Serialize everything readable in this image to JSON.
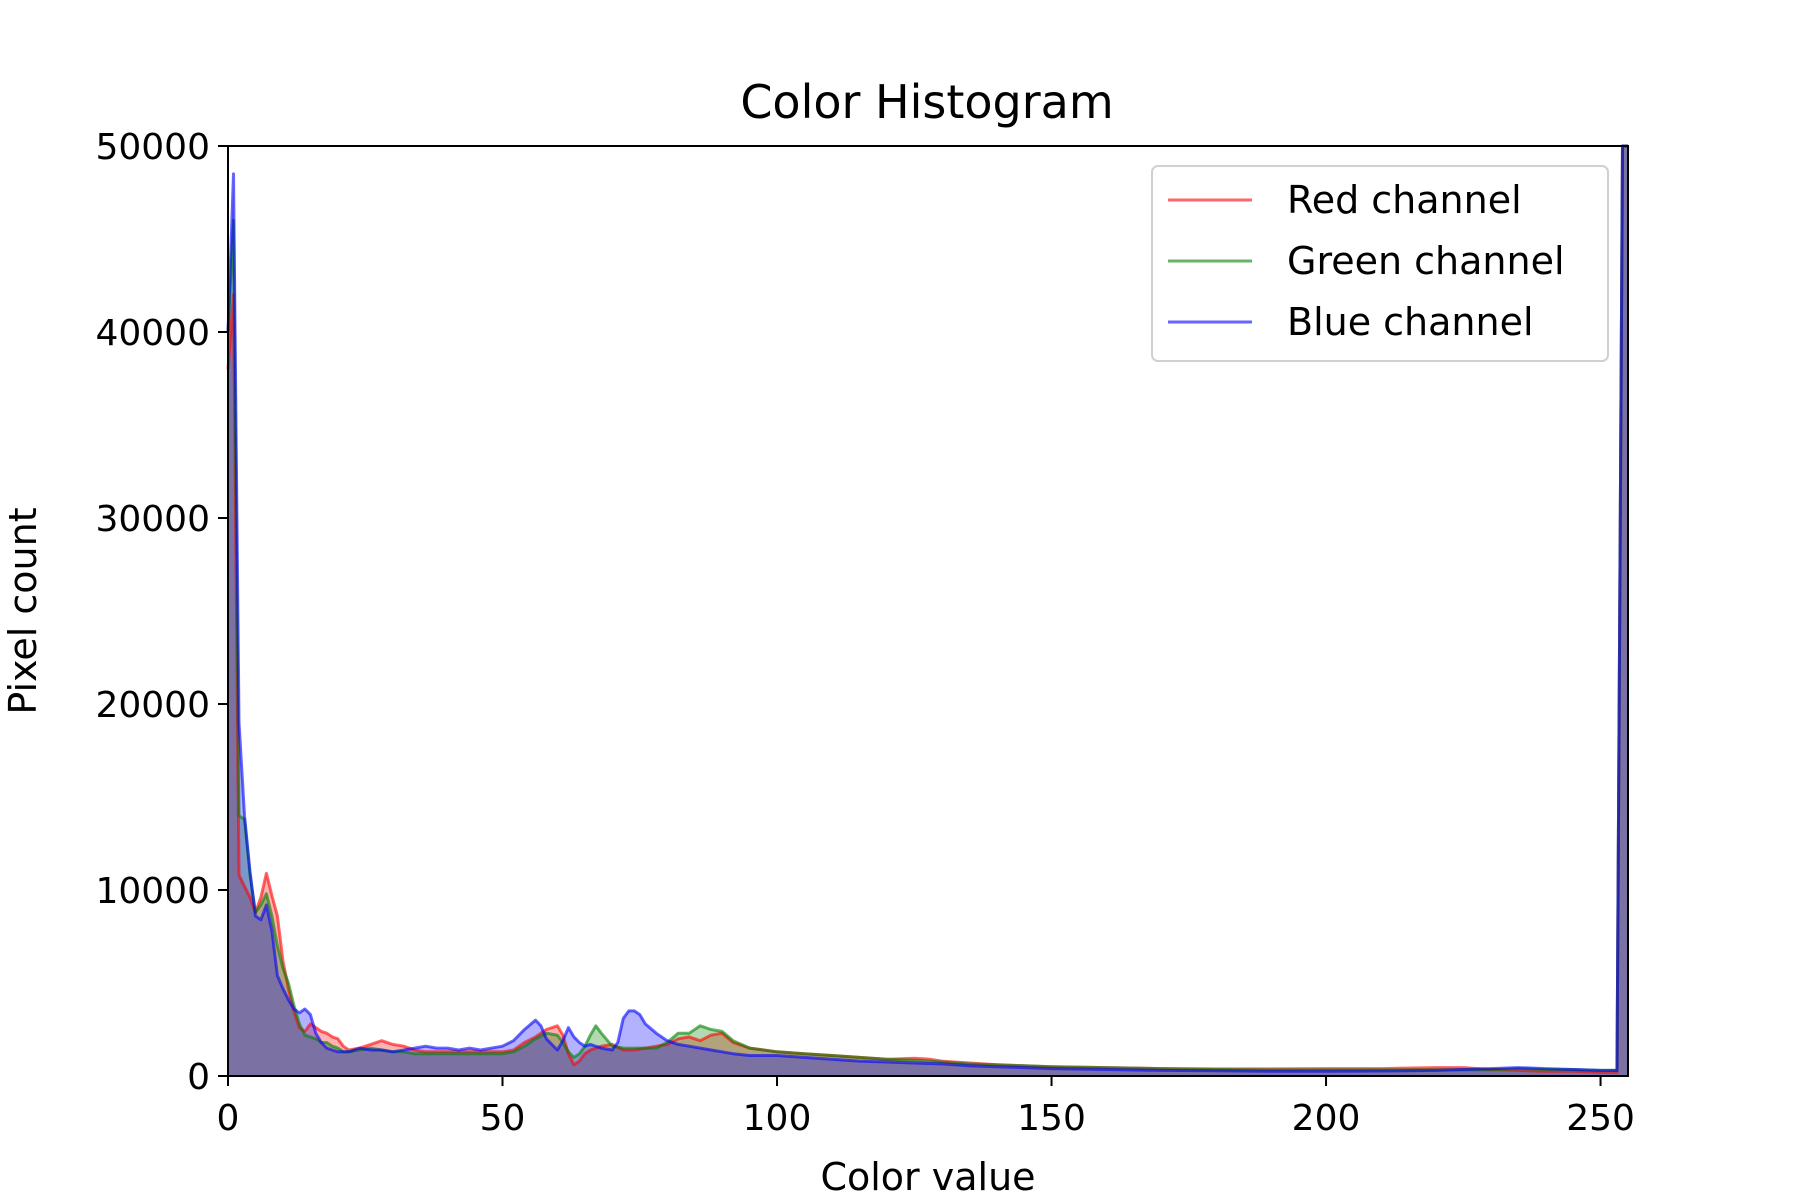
{
  "chart_data": {
    "type": "area",
    "title": "Color Histogram",
    "xlabel": "Color value",
    "ylabel": "Pixel count",
    "xlim": [
      0,
      255
    ],
    "ylim": [
      0,
      50000
    ],
    "xticks": [
      0,
      50,
      100,
      150,
      200,
      250
    ],
    "yticks": [
      0,
      10000,
      20000,
      30000,
      40000,
      50000
    ],
    "grid": false,
    "legend": {
      "placement": "top-right"
    },
    "series": [
      {
        "name": "Red channel",
        "color": "#ff0000",
        "points": [
          [
            0,
            38000
          ],
          [
            1,
            42000
          ],
          [
            2,
            10800
          ],
          [
            3,
            10200
          ],
          [
            4,
            9600
          ],
          [
            5,
            8800
          ],
          [
            6,
            9600
          ],
          [
            7,
            10900
          ],
          [
            8,
            9700
          ],
          [
            9,
            8600
          ],
          [
            10,
            6200
          ],
          [
            11,
            4700
          ],
          [
            12,
            3500
          ],
          [
            13,
            2600
          ],
          [
            14,
            2400
          ],
          [
            15,
            2800
          ],
          [
            16,
            2600
          ],
          [
            17,
            2400
          ],
          [
            18,
            2300
          ],
          [
            19,
            2100
          ],
          [
            20,
            2000
          ],
          [
            21,
            1600
          ],
          [
            22,
            1400
          ],
          [
            24,
            1500
          ],
          [
            26,
            1700
          ],
          [
            28,
            1900
          ],
          [
            30,
            1700
          ],
          [
            32,
            1600
          ],
          [
            34,
            1400
          ],
          [
            36,
            1300
          ],
          [
            38,
            1300
          ],
          [
            40,
            1300
          ],
          [
            42,
            1300
          ],
          [
            44,
            1300
          ],
          [
            46,
            1300
          ],
          [
            48,
            1300
          ],
          [
            50,
            1300
          ],
          [
            52,
            1400
          ],
          [
            54,
            1800
          ],
          [
            56,
            2100
          ],
          [
            58,
            2500
          ],
          [
            60,
            2700
          ],
          [
            61,
            2200
          ],
          [
            62,
            1200
          ],
          [
            63,
            600
          ],
          [
            64,
            800
          ],
          [
            65,
            1200
          ],
          [
            66,
            1400
          ],
          [
            68,
            1600
          ],
          [
            70,
            1700
          ],
          [
            72,
            1400
          ],
          [
            74,
            1400
          ],
          [
            76,
            1500
          ],
          [
            78,
            1600
          ],
          [
            80,
            1700
          ],
          [
            82,
            2000
          ],
          [
            84,
            2100
          ],
          [
            86,
            1900
          ],
          [
            88,
            2200
          ],
          [
            90,
            2300
          ],
          [
            92,
            1800
          ],
          [
            95,
            1500
          ],
          [
            100,
            1300
          ],
          [
            105,
            1200
          ],
          [
            110,
            1100
          ],
          [
            115,
            1000
          ],
          [
            120,
            900
          ],
          [
            125,
            950
          ],
          [
            128,
            900
          ],
          [
            130,
            800
          ],
          [
            135,
            700
          ],
          [
            140,
            600
          ],
          [
            145,
            550
          ],
          [
            150,
            500
          ],
          [
            160,
            450
          ],
          [
            170,
            400
          ],
          [
            180,
            380
          ],
          [
            190,
            380
          ],
          [
            200,
            400
          ],
          [
            210,
            400
          ],
          [
            220,
            450
          ],
          [
            225,
            450
          ],
          [
            230,
            350
          ],
          [
            235,
            300
          ],
          [
            240,
            250
          ],
          [
            245,
            250
          ],
          [
            250,
            200
          ],
          [
            253,
            200
          ],
          [
            254,
            50000
          ],
          [
            255,
            50000
          ]
        ]
      },
      {
        "name": "Green channel",
        "color": "#008000",
        "points": [
          [
            0,
            40000
          ],
          [
            1,
            46000
          ],
          [
            2,
            14000
          ],
          [
            3,
            13800
          ],
          [
            4,
            10800
          ],
          [
            5,
            8800
          ],
          [
            6,
            9200
          ],
          [
            7,
            9800
          ],
          [
            8,
            8600
          ],
          [
            9,
            7000
          ],
          [
            10,
            5800
          ],
          [
            11,
            5000
          ],
          [
            12,
            3800
          ],
          [
            13,
            2800
          ],
          [
            14,
            2200
          ],
          [
            15,
            2100
          ],
          [
            16,
            2000
          ],
          [
            17,
            1800
          ],
          [
            18,
            1800
          ],
          [
            19,
            1600
          ],
          [
            20,
            1500
          ],
          [
            21,
            1300
          ],
          [
            22,
            1300
          ],
          [
            24,
            1400
          ],
          [
            26,
            1500
          ],
          [
            28,
            1400
          ],
          [
            30,
            1300
          ],
          [
            32,
            1300
          ],
          [
            34,
            1200
          ],
          [
            36,
            1200
          ],
          [
            38,
            1200
          ],
          [
            40,
            1200
          ],
          [
            42,
            1200
          ],
          [
            44,
            1200
          ],
          [
            46,
            1200
          ],
          [
            48,
            1200
          ],
          [
            50,
            1200
          ],
          [
            52,
            1300
          ],
          [
            54,
            1600
          ],
          [
            56,
            2000
          ],
          [
            58,
            2300
          ],
          [
            60,
            2200
          ],
          [
            61,
            1800
          ],
          [
            62,
            1300
          ],
          [
            63,
            1000
          ],
          [
            64,
            1200
          ],
          [
            65,
            1600
          ],
          [
            66,
            2200
          ],
          [
            67,
            2700
          ],
          [
            68,
            2300
          ],
          [
            70,
            1600
          ],
          [
            72,
            1500
          ],
          [
            74,
            1500
          ],
          [
            76,
            1500
          ],
          [
            78,
            1500
          ],
          [
            80,
            1800
          ],
          [
            82,
            2300
          ],
          [
            84,
            2300
          ],
          [
            86,
            2700
          ],
          [
            88,
            2500
          ],
          [
            90,
            2400
          ],
          [
            92,
            1900
          ],
          [
            95,
            1500
          ],
          [
            100,
            1300
          ],
          [
            105,
            1200
          ],
          [
            110,
            1100
          ],
          [
            115,
            1000
          ],
          [
            120,
            900
          ],
          [
            125,
            850
          ],
          [
            130,
            750
          ],
          [
            135,
            650
          ],
          [
            140,
            600
          ],
          [
            145,
            550
          ],
          [
            150,
            500
          ],
          [
            160,
            450
          ],
          [
            170,
            400
          ],
          [
            180,
            350
          ],
          [
            190,
            330
          ],
          [
            200,
            330
          ],
          [
            210,
            330
          ],
          [
            220,
            330
          ],
          [
            225,
            330
          ],
          [
            230,
            330
          ],
          [
            235,
            400
          ],
          [
            240,
            350
          ],
          [
            245,
            350
          ],
          [
            250,
            300
          ],
          [
            253,
            300
          ],
          [
            254,
            50000
          ],
          [
            255,
            50000
          ]
        ]
      },
      {
        "name": "Blue channel",
        "color": "#0000ff",
        "points": [
          [
            0,
            40000
          ],
          [
            1,
            48500
          ],
          [
            2,
            19000
          ],
          [
            3,
            14000
          ],
          [
            4,
            11000
          ],
          [
            5,
            8600
          ],
          [
            6,
            8400
          ],
          [
            7,
            9200
          ],
          [
            8,
            7800
          ],
          [
            9,
            5400
          ],
          [
            10,
            4700
          ],
          [
            11,
            4100
          ],
          [
            12,
            3600
          ],
          [
            13,
            3400
          ],
          [
            14,
            3600
          ],
          [
            15,
            3300
          ],
          [
            16,
            2300
          ],
          [
            17,
            1800
          ],
          [
            18,
            1500
          ],
          [
            19,
            1400
          ],
          [
            20,
            1300
          ],
          [
            21,
            1300
          ],
          [
            22,
            1300
          ],
          [
            24,
            1500
          ],
          [
            26,
            1400
          ],
          [
            28,
            1400
          ],
          [
            30,
            1300
          ],
          [
            32,
            1400
          ],
          [
            34,
            1500
          ],
          [
            36,
            1600
          ],
          [
            38,
            1500
          ],
          [
            40,
            1500
          ],
          [
            42,
            1400
          ],
          [
            44,
            1500
          ],
          [
            46,
            1400
          ],
          [
            48,
            1500
          ],
          [
            50,
            1600
          ],
          [
            52,
            1900
          ],
          [
            54,
            2500
          ],
          [
            56,
            3000
          ],
          [
            57,
            2700
          ],
          [
            58,
            2000
          ],
          [
            59,
            1700
          ],
          [
            60,
            1400
          ],
          [
            61,
            1900
          ],
          [
            62,
            2600
          ],
          [
            63,
            2100
          ],
          [
            64,
            1800
          ],
          [
            65,
            1600
          ],
          [
            66,
            1700
          ],
          [
            68,
            1500
          ],
          [
            70,
            1400
          ],
          [
            71,
            1800
          ],
          [
            72,
            3100
          ],
          [
            73,
            3500
          ],
          [
            74,
            3500
          ],
          [
            75,
            3300
          ],
          [
            76,
            2800
          ],
          [
            78,
            2300
          ],
          [
            80,
            1900
          ],
          [
            82,
            1700
          ],
          [
            84,
            1600
          ],
          [
            86,
            1500
          ],
          [
            88,
            1400
          ],
          [
            90,
            1300
          ],
          [
            92,
            1200
          ],
          [
            95,
            1100
          ],
          [
            100,
            1100
          ],
          [
            105,
            1000
          ],
          [
            110,
            900
          ],
          [
            115,
            800
          ],
          [
            120,
            750
          ],
          [
            125,
            700
          ],
          [
            130,
            650
          ],
          [
            135,
            550
          ],
          [
            140,
            500
          ],
          [
            145,
            450
          ],
          [
            150,
            400
          ],
          [
            160,
            350
          ],
          [
            170,
            300
          ],
          [
            180,
            280
          ],
          [
            190,
            250
          ],
          [
            200,
            250
          ],
          [
            210,
            270
          ],
          [
            220,
            300
          ],
          [
            225,
            350
          ],
          [
            230,
            400
          ],
          [
            235,
            450
          ],
          [
            240,
            400
          ],
          [
            245,
            350
          ],
          [
            250,
            300
          ],
          [
            253,
            300
          ],
          [
            254,
            50000
          ],
          [
            255,
            50000
          ]
        ]
      }
    ]
  }
}
